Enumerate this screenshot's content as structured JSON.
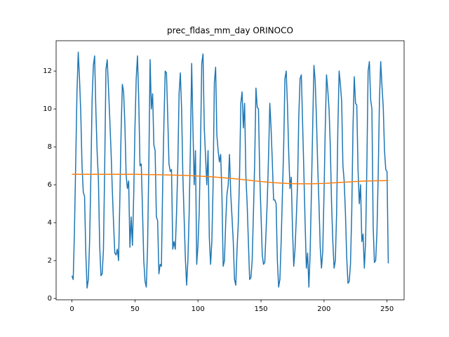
{
  "chart_data": {
    "type": "line",
    "title": "prec_fldas_mm_day ORINOCO",
    "xlim": [
      -12.55,
      263.55
    ],
    "xticks": [
      0,
      50,
      100,
      150,
      200,
      250
    ],
    "ylim": [
      -0.07,
      13.6
    ],
    "yticks": [
      0,
      2,
      4,
      6,
      8,
      10,
      12
    ],
    "series": [
      {
        "color": "#1f77b4",
        "values": [
          1.2,
          1.0,
          3.6,
          7.2,
          10.9,
          13.0,
          11.6,
          9.8,
          7.0,
          5.6,
          5.4,
          2.4,
          0.55,
          1.0,
          3.0,
          6.4,
          10.5,
          12.3,
          12.8,
          9.9,
          7.7,
          6.3,
          2.8,
          1.2,
          1.3,
          2.6,
          7.0,
          12.1,
          12.6,
          11.1,
          9.5,
          7.8,
          5.8,
          4.0,
          2.4,
          2.3,
          2.6,
          2.0,
          5.2,
          8.8,
          11.3,
          10.9,
          9.2,
          6.5,
          5.8,
          6.2,
          2.7,
          4.3,
          2.8,
          5.4,
          9.0,
          11.6,
          12.8,
          10.5,
          7.0,
          7.1,
          4.6,
          2.0,
          0.9,
          0.6,
          2.7,
          7.0,
          12.6,
          10.0,
          10.8,
          8.1,
          7.8,
          4.3,
          4.1,
          1.3,
          1.8,
          1.7,
          6.0,
          9.3,
          12.0,
          11.9,
          9.6,
          7.1,
          6.7,
          6.8,
          2.6,
          3.0,
          2.6,
          4.5,
          7.0,
          10.8,
          11.9,
          10.0,
          6.5,
          4.3,
          2.1,
          0.7,
          2.0,
          4.5,
          8.0,
          12.4,
          9.0,
          6.0,
          7.8,
          1.8,
          2.8,
          4.6,
          8.0,
          12.4,
          12.9,
          9.0,
          7.5,
          6.0,
          7.8,
          3.2,
          1.8,
          3.0,
          6.0,
          11.4,
          12.2,
          8.6,
          7.8,
          7.2,
          7.6,
          5.5,
          1.7,
          2.0,
          4.0,
          5.5,
          6.0,
          7.6,
          5.5,
          4.3,
          3.0,
          1.0,
          0.7,
          2.6,
          4.0,
          6.5,
          10.3,
          10.9,
          9.0,
          10.3,
          6.5,
          5.0,
          3.0,
          1.0,
          1.1,
          2.0,
          4.5,
          7.2,
          11.1,
          10.1,
          10.0,
          6.5,
          4.5,
          2.3,
          1.8,
          1.9,
          3.5,
          5.2,
          7.5,
          10.3,
          9.0,
          7.2,
          5.2,
          5.2,
          5.0,
          2.0,
          0.6,
          1.0,
          3.0,
          5.5,
          8.0,
          11.6,
          12.0,
          10.2,
          7.7,
          5.8,
          6.4,
          3.7,
          1.7,
          2.6,
          4.2,
          6.0,
          9.6,
          11.6,
          11.8,
          9.3,
          6.7,
          4.0,
          1.6,
          2.4,
          0.6,
          2.4,
          5.6,
          9.0,
          12.3,
          11.5,
          9.5,
          7.0,
          5.0,
          2.7,
          1.6,
          2.5,
          5.5,
          9.0,
          11.8,
          11.0,
          10.0,
          8.0,
          5.0,
          3.0,
          1.6,
          2.0,
          4.5,
          9.0,
          12.0,
          11.3,
          10.4,
          7.0,
          6.2,
          4.5,
          2.2,
          0.8,
          0.9,
          1.8,
          4.5,
          9.0,
          11.7,
          10.3,
          10.2,
          6.8,
          5.0,
          6.0,
          3.0,
          3.4,
          1.6,
          3.0,
          7.0,
          12.0,
          12.5,
          10.5,
          10.0,
          3.8,
          1.9,
          2.0,
          3.5,
          6.5,
          10.5,
          12.5,
          11.2,
          10.1,
          7.8,
          6.8,
          6.7,
          1.85
        ]
      },
      {
        "color": "#ff7f0e",
        "x": [
          0,
          10,
          20,
          30,
          40,
          50,
          60,
          70,
          80,
          90,
          100,
          110,
          120,
          130,
          140,
          150,
          160,
          170,
          180,
          190,
          200,
          210,
          220,
          230,
          240,
          250,
          251
        ],
        "values": [
          6.55,
          6.55,
          6.55,
          6.55,
          6.55,
          6.55,
          6.54,
          6.53,
          6.51,
          6.49,
          6.46,
          6.42,
          6.37,
          6.31,
          6.24,
          6.17,
          6.11,
          6.07,
          6.05,
          6.05,
          6.07,
          6.11,
          6.15,
          6.19,
          6.21,
          6.22,
          6.22
        ]
      }
    ]
  }
}
